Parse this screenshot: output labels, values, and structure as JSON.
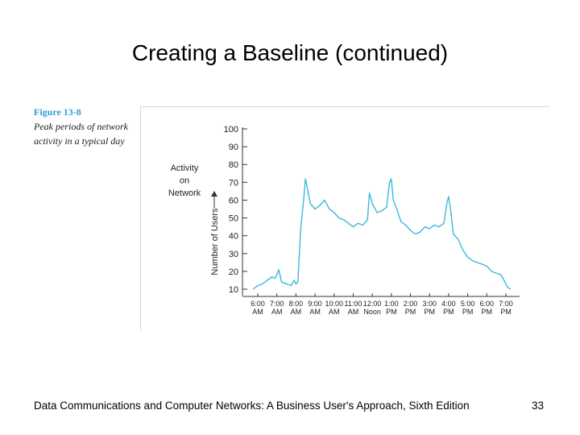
{
  "slide": {
    "title": "Creating a Baseline (continued)",
    "footer": "Data Communications and Computer Networks: A Business User's Approach, Sixth Edition",
    "page_number": "33"
  },
  "figure": {
    "label": "Figure 13-8",
    "description": "Peak periods of network activity in a typical day"
  },
  "colors": {
    "line": "#3bb8dd",
    "figure_label": "#2a9fd6"
  },
  "chart_data": {
    "type": "line",
    "title": "",
    "annotation": "Activity on Network",
    "ylabel": "Number of Users",
    "xlabel": "",
    "ylim": [
      10,
      100
    ],
    "yticks": [
      10,
      20,
      30,
      40,
      50,
      60,
      70,
      80,
      90,
      100
    ],
    "xlim": [
      6,
      19
    ],
    "xticks": [
      {
        "value": 6,
        "line1": "6:00",
        "line2": "AM"
      },
      {
        "value": 7,
        "line1": "7:00",
        "line2": "AM"
      },
      {
        "value": 8,
        "line1": "8:00",
        "line2": "AM"
      },
      {
        "value": 9,
        "line1": "9:00",
        "line2": "AM"
      },
      {
        "value": 10,
        "line1": "10:00",
        "line2": "AM"
      },
      {
        "value": 11,
        "line1": "11:00",
        "line2": "AM"
      },
      {
        "value": 12,
        "line1": "12:00",
        "line2": "Noon"
      },
      {
        "value": 13,
        "line1": "1:00",
        "line2": "PM"
      },
      {
        "value": 14,
        "line1": "2:00",
        "line2": "PM"
      },
      {
        "value": 15,
        "line1": "3:00",
        "line2": "PM"
      },
      {
        "value": 16,
        "line1": "4:00",
        "line2": "PM"
      },
      {
        "value": 17,
        "line1": "5:00",
        "line2": "PM"
      },
      {
        "value": 18,
        "line1": "6:00",
        "line2": "PM"
      },
      {
        "value": 19,
        "line1": "7:00",
        "line2": "PM"
      }
    ],
    "grid": false,
    "legend": "none",
    "series": [
      {
        "x": [
          5.75,
          6.0,
          6.25,
          6.5,
          6.75,
          6.9,
          7.0,
          7.1,
          7.25,
          7.5,
          7.75,
          7.9,
          8.0,
          8.1,
          8.25,
          8.4,
          8.5,
          8.75,
          9.0,
          9.25,
          9.5,
          9.75,
          10.0,
          10.25,
          10.5,
          10.75,
          11.0,
          11.25,
          11.5,
          11.75,
          11.85,
          12.0,
          12.25,
          12.5,
          12.75,
          12.9,
          13.0,
          13.1,
          13.25,
          13.5,
          13.75,
          14.0,
          14.25,
          14.5,
          14.75,
          15.0,
          15.25,
          15.5,
          15.75,
          15.9,
          16.0,
          16.1,
          16.25,
          16.5,
          16.75,
          17.0,
          17.25,
          17.5,
          17.75,
          18.0,
          18.25,
          18.5,
          18.75,
          18.9,
          19.0,
          19.1,
          19.25
        ],
        "y": [
          10,
          12,
          13,
          15,
          17,
          16,
          18,
          21,
          14,
          13,
          12,
          15,
          13,
          14,
          44,
          60,
          72,
          58,
          55,
          57,
          60,
          55,
          53,
          50,
          49,
          47,
          45,
          47,
          46,
          49,
          64,
          58,
          53,
          54,
          56,
          70,
          72,
          60,
          56,
          48,
          46,
          43,
          41,
          42,
          45,
          44,
          46,
          45,
          47,
          58,
          62,
          55,
          41,
          38,
          32,
          28,
          26,
          25,
          24,
          23,
          20,
          19,
          18,
          15,
          13,
          11,
          10
        ]
      }
    ]
  }
}
